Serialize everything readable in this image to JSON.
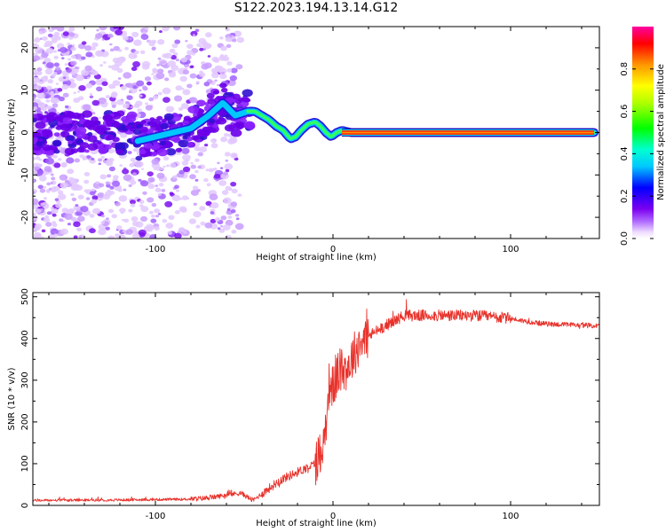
{
  "title": "S122.2023.194.13.14.G12",
  "chart_data": [
    {
      "type": "heatmap",
      "xlabel": "Height of straight line (km)",
      "ylabel": "Frequency (Hz)",
      "xlim": [
        -169,
        150
      ],
      "ylim": [
        -25,
        25
      ],
      "xticks": [
        -100,
        0,
        100
      ],
      "yticks": [
        -20,
        -10,
        0,
        10,
        20
      ],
      "colorbar": {
        "label": "Normalized spectral amplitude",
        "range": [
          0,
          1
        ],
        "ticks": [
          0.0,
          0.2,
          0.4,
          0.6,
          0.8
        ]
      },
      "ridge": {
        "x": [
          -110,
          -100,
          -90,
          -80,
          -70,
          -62,
          -55,
          -48,
          -44,
          -40,
          -36,
          -32,
          -28,
          -24,
          -21,
          -18,
          -14,
          -10,
          -7,
          -4,
          -1,
          2,
          5,
          10,
          50,
          100,
          147
        ],
        "y": [
          -2,
          -1,
          0,
          1,
          4,
          7,
          4,
          5,
          5,
          4,
          3,
          1.5,
          0.5,
          -1.5,
          -1,
          0.5,
          2,
          2.5,
          1.5,
          0,
          -1,
          0,
          0.5,
          0,
          0,
          0,
          0
        ]
      }
    },
    {
      "type": "line",
      "xlabel": "Height of straight line (km)",
      "ylabel": "SNR (10 * v/v)",
      "xlim": [
        -169,
        150
      ],
      "ylim": [
        0,
        510
      ],
      "xticks": [
        -100,
        0,
        100
      ],
      "yticks": [
        0,
        100,
        200,
        300,
        400,
        500
      ],
      "color": "#e8322b",
      "trend": {
        "x": [
          -169,
          -120,
          -80,
          -70,
          -60,
          -52,
          -45,
          -40,
          -30,
          -20,
          -10,
          -5,
          -2,
          0,
          3,
          8,
          15,
          25,
          40,
          60,
          80,
          100,
          110,
          120,
          150
        ],
        "y": [
          12,
          13,
          15,
          18,
          25,
          30,
          12,
          28,
          60,
          80,
          100,
          150,
          300,
          280,
          320,
          330,
          390,
          420,
          455,
          455,
          455,
          448,
          440,
          435,
          430
        ]
      }
    }
  ]
}
